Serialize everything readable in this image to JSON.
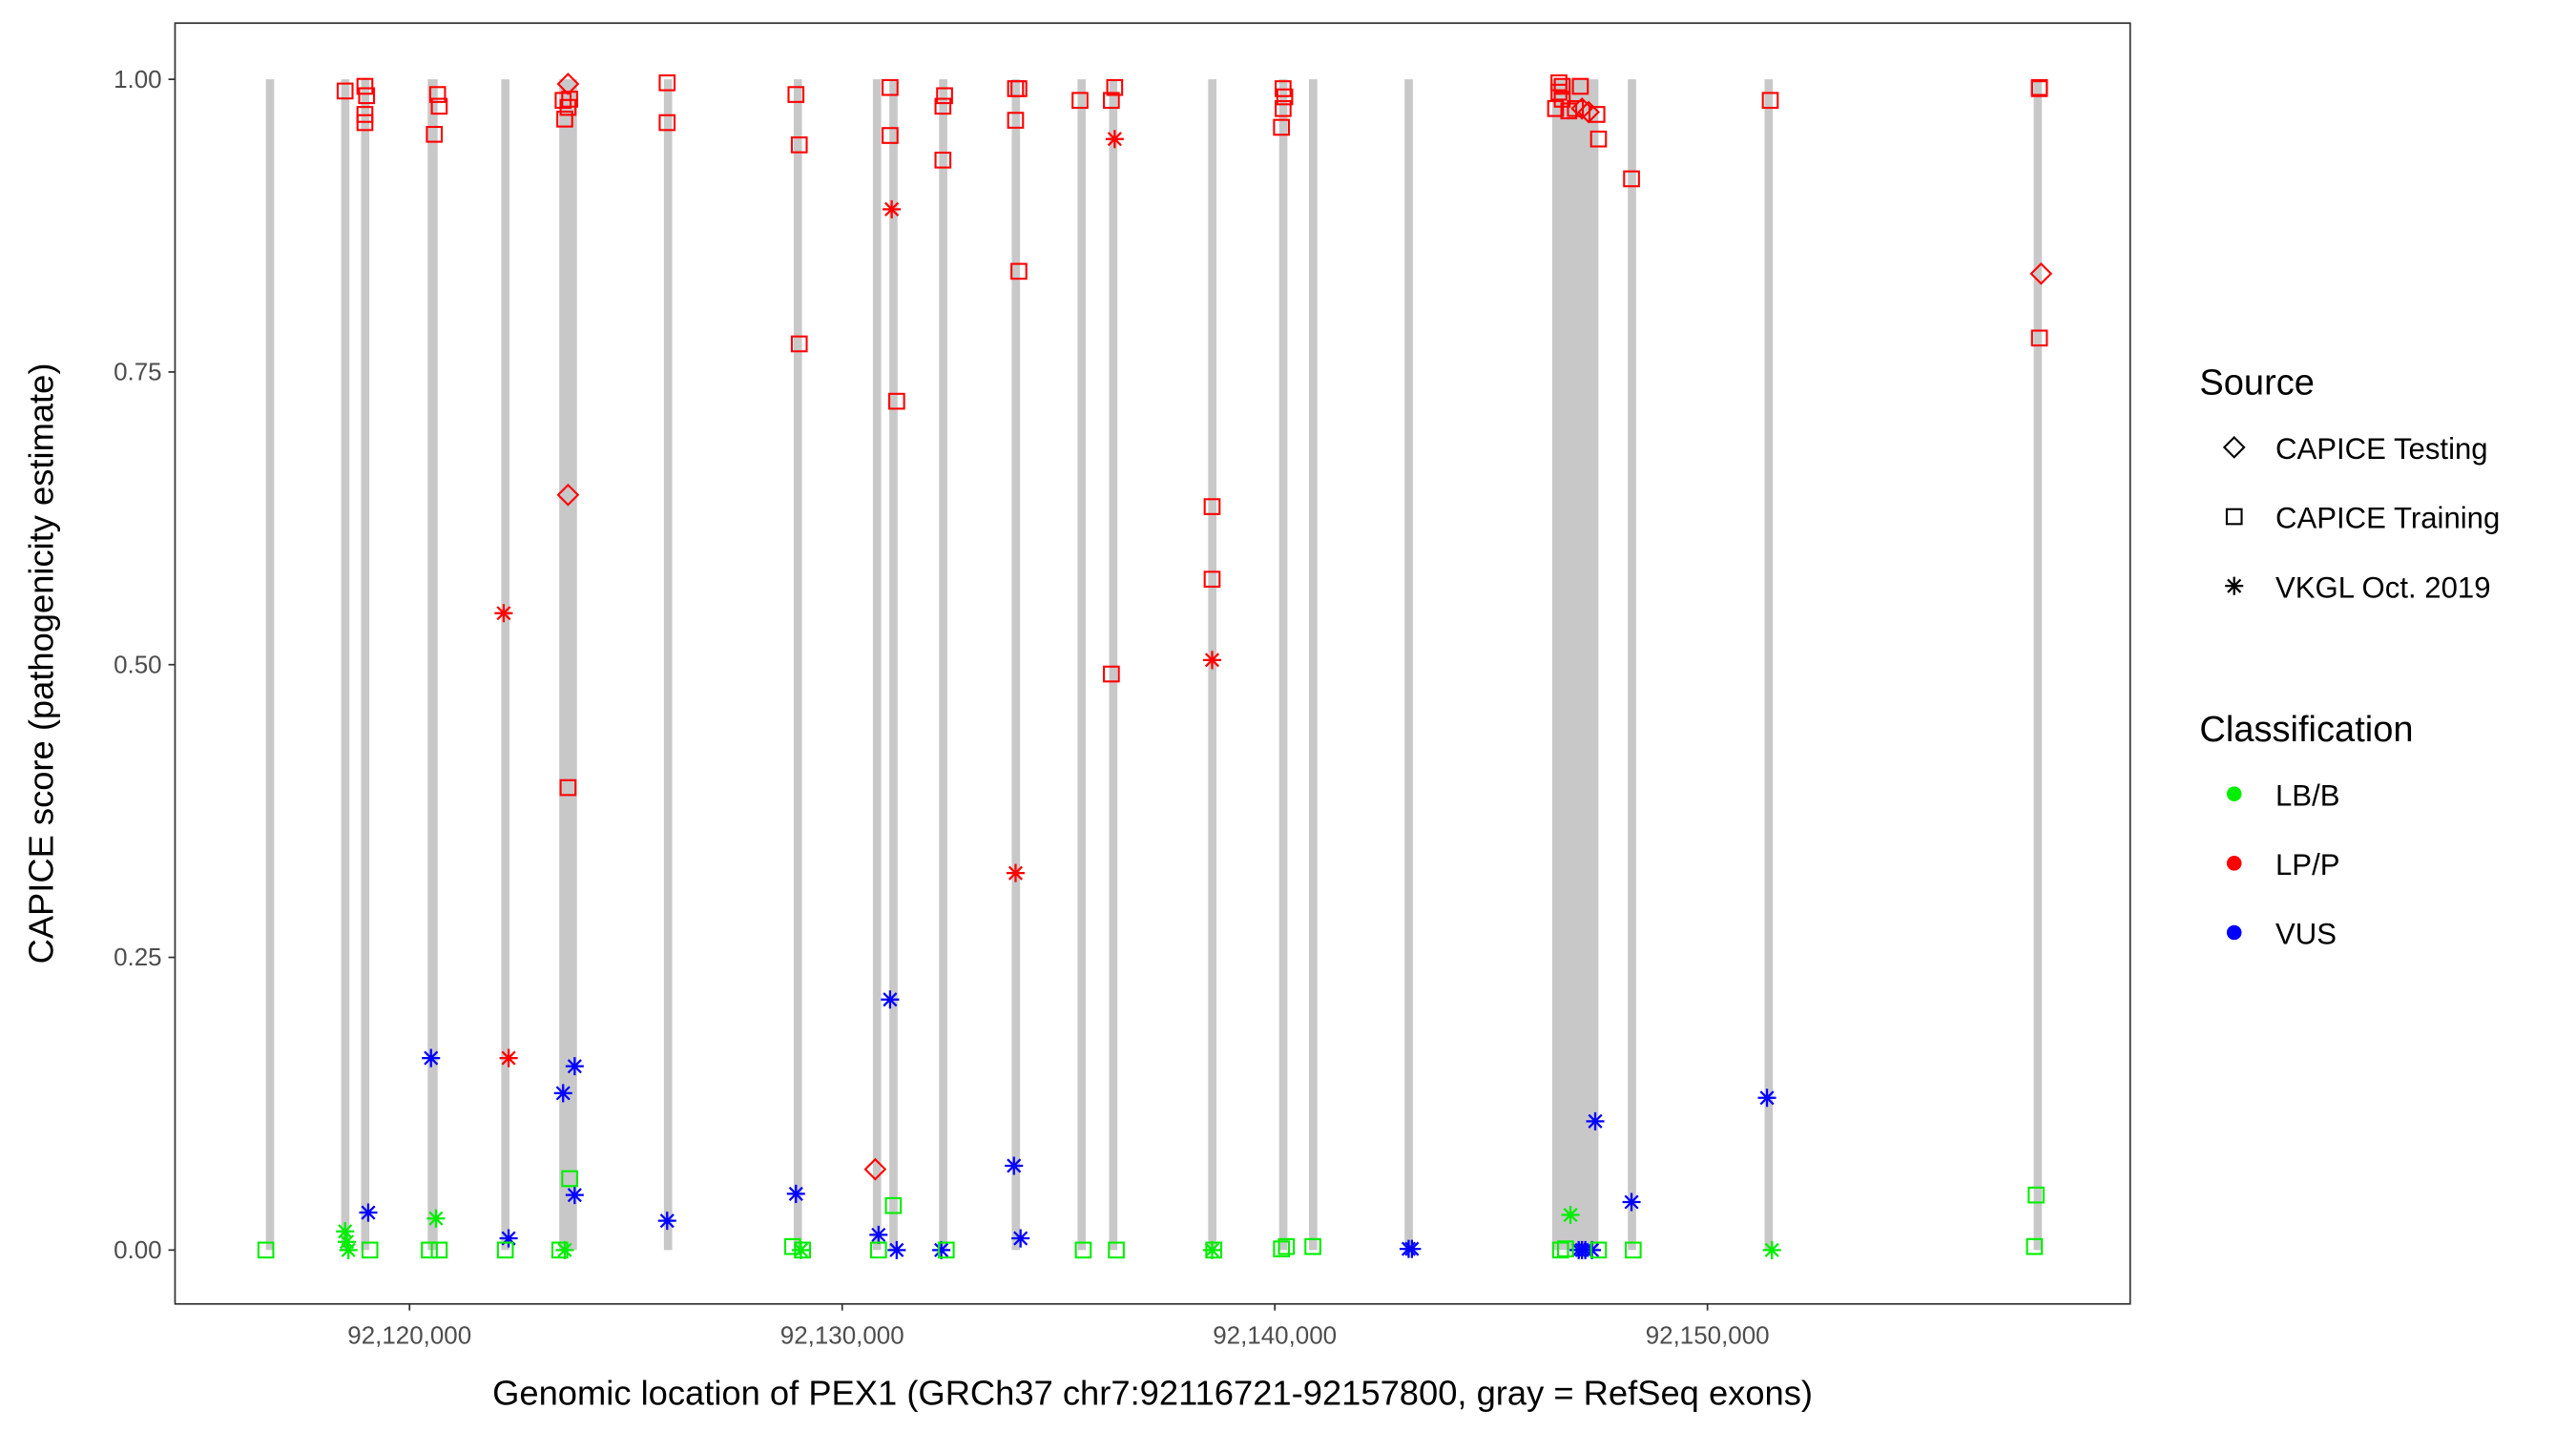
{
  "chart_data": {
    "type": "scatter",
    "xlabel": "Genomic location of PEX1 (GRCh37 chr7:92116721-92157800, gray = RefSeq exons)",
    "ylabel": "CAPICE score (pathogenicity estimate)",
    "xlim": [
      92114580,
      92159770
    ],
    "ylim": [
      -0.046,
      1.048
    ],
    "x_ticks": [
      92120000,
      92130000,
      92140000,
      92150000
    ],
    "x_tick_labels": [
      "92,120,000",
      "92,130,000",
      "92,140,000",
      "92,150,000"
    ],
    "y_ticks": [
      0,
      0.25,
      0.5,
      0.75,
      1.0
    ],
    "y_tick_labels": [
      "0.00",
      "0.25",
      "0.50",
      "0.75",
      "1.00"
    ],
    "grid": false,
    "exon_color": "#c8c8c8",
    "exons": [
      [
        92116680,
        92116860
      ],
      [
        92118420,
        92118600
      ],
      [
        92118880,
        92119060
      ],
      [
        92120420,
        92120650
      ],
      [
        92122120,
        92122300
      ],
      [
        92123460,
        92123870
      ],
      [
        92125880,
        92126030
      ],
      [
        92128880,
        92129060
      ],
      [
        92130710,
        92130890
      ],
      [
        92131090,
        92131270
      ],
      [
        92132240,
        92132420
      ],
      [
        92133920,
        92134100
      ],
      [
        92135440,
        92135620
      ],
      [
        92136170,
        92136350
      ],
      [
        92138460,
        92138640
      ],
      [
        92140100,
        92140280
      ],
      [
        92140790,
        92140970
      ],
      [
        92143000,
        92143180
      ],
      [
        92146410,
        92147480
      ],
      [
        92148160,
        92148330
      ],
      [
        92151320,
        92151500
      ],
      [
        92157540,
        92157730
      ]
    ],
    "legend": {
      "placement": "right",
      "source_title": "Source",
      "source_entries": [
        {
          "key": "testing",
          "label": "CAPICE Testing",
          "shape": "diamond"
        },
        {
          "key": "training",
          "label": "CAPICE Training",
          "shape": "square"
        },
        {
          "key": "vkgl",
          "label": "VKGL Oct. 2019",
          "shape": "asterisk"
        }
      ],
      "class_title": "Classification",
      "class_entries": [
        {
          "key": "lbb",
          "label": "LB/B",
          "color": "#00ee00"
        },
        {
          "key": "lpp",
          "label": "LP/P",
          "color": "#ff0000"
        },
        {
          "key": "vus",
          "label": "VUS",
          "color": "#0000ff"
        }
      ]
    },
    "series": [
      {
        "source": "training",
        "class": "lpp",
        "points": [
          [
            92118511,
            0.99
          ],
          [
            92118969,
            0.994
          ],
          [
            92119008,
            0.986
          ],
          [
            92118969,
            0.97
          ],
          [
            92118969,
            0.963
          ],
          [
            92120649,
            0.987
          ],
          [
            92120687,
            0.977
          ],
          [
            92120573,
            0.953
          ],
          [
            92123550,
            0.982
          ],
          [
            92123702,
            0.983
          ],
          [
            92123664,
            0.976
          ],
          [
            92123588,
            0.966
          ],
          [
            92123664,
            0.395
          ],
          [
            92125954,
            0.997
          ],
          [
            92125954,
            0.963
          ],
          [
            92128932,
            0.987
          ],
          [
            92129008,
            0.944
          ],
          [
            92129008,
            0.774
          ],
          [
            92131107,
            0.993
          ],
          [
            92131107,
            0.952
          ],
          [
            92131260,
            0.725
          ],
          [
            92132367,
            0.986
          ],
          [
            92132329,
            0.977
          ],
          [
            92132329,
            0.931
          ],
          [
            92134008,
            0.992
          ],
          [
            92134084,
            0.992
          ],
          [
            92134008,
            0.965
          ],
          [
            92134084,
            0.836
          ],
          [
            92135497,
            0.982
          ],
          [
            92136222,
            0.982
          ],
          [
            92136299,
            0.993
          ],
          [
            92136222,
            0.492
          ],
          [
            92138551,
            0.635
          ],
          [
            92138551,
            0.573
          ],
          [
            92140192,
            0.992
          ],
          [
            92140230,
            0.985
          ],
          [
            92140192,
            0.975
          ],
          [
            92140154,
            0.959
          ],
          [
            92148245,
            0.915
          ],
          [
            92151452,
            0.982
          ],
          [
            92157673,
            0.993
          ],
          [
            92157673,
            0.992
          ],
          [
            92157673,
            0.779
          ],
          [
            92146567,
            0.997
          ],
          [
            92146643,
            0.994
          ],
          [
            92146567,
            0.989
          ],
          [
            92146643,
            0.983
          ],
          [
            92146490,
            0.975
          ],
          [
            92146795,
            0.973
          ],
          [
            92147062,
            0.994
          ],
          [
            92146948,
            0.975
          ],
          [
            92147444,
            0.97
          ],
          [
            92147482,
            0.949
          ]
        ]
      },
      {
        "source": "testing",
        "class": "lpp",
        "points": [
          [
            92123664,
            0.996
          ],
          [
            92123664,
            0.645
          ],
          [
            92130764,
            0.069
          ],
          [
            92157711,
            0.834
          ],
          [
            92147100,
            0.975
          ],
          [
            92147253,
            0.972
          ]
        ]
      },
      {
        "source": "vkgl",
        "class": "lpp",
        "points": [
          [
            92122176,
            0.544
          ],
          [
            92122290,
            0.164
          ],
          [
            92131145,
            0.889
          ],
          [
            92134008,
            0.322
          ],
          [
            92138551,
            0.504
          ],
          [
            92136299,
            0.949
          ]
        ]
      },
      {
        "source": "vkgl",
        "class": "vus",
        "points": [
          [
            92120496,
            0.164
          ],
          [
            92119046,
            0.032
          ],
          [
            92122290,
            0.01
          ],
          [
            92123550,
            0.134
          ],
          [
            92123817,
            0.157
          ],
          [
            92123817,
            0.047
          ],
          [
            92125954,
            0.025
          ],
          [
            92128932,
            0.048
          ],
          [
            92131107,
            0.214
          ],
          [
            92130840,
            0.013
          ],
          [
            92131260,
            0.0
          ],
          [
            92132291,
            0.0
          ],
          [
            92133970,
            0.072
          ],
          [
            92134123,
            0.01
          ],
          [
            92143093,
            0.001
          ],
          [
            92143169,
            0.001
          ],
          [
            92147406,
            0.11
          ],
          [
            92148245,
            0.041
          ],
          [
            92151376,
            0.13
          ],
          [
            92147024,
            0.0
          ],
          [
            92147177,
            0.0
          ],
          [
            92147330,
            0.0
          ],
          [
            92147100,
            0.0
          ]
        ]
      },
      {
        "source": "training",
        "class": "lbb",
        "points": [
          [
            92116679,
            0.0
          ],
          [
            92119084,
            0.0
          ],
          [
            92120458,
            0.0
          ],
          [
            92120687,
            0.0
          ],
          [
            92122214,
            0.0
          ],
          [
            92123473,
            0.0
          ],
          [
            92123702,
            0.061
          ],
          [
            92128855,
            0.003
          ],
          [
            92129084,
            0.0
          ],
          [
            92130840,
            0.0
          ],
          [
            92131183,
            0.038
          ],
          [
            92132405,
            0.0
          ],
          [
            92135573,
            0.0
          ],
          [
            92136337,
            0.0
          ],
          [
            92138589,
            0.0
          ],
          [
            92140154,
            0.001
          ],
          [
            92140268,
            0.003
          ],
          [
            92140879,
            0.003
          ],
          [
            92146605,
            0.0
          ],
          [
            92146719,
            0.001
          ],
          [
            92147482,
            0.0
          ],
          [
            92148284,
            0.0
          ],
          [
            92157597,
            0.047
          ],
          [
            92157559,
            0.003
          ]
        ]
      },
      {
        "source": "vkgl",
        "class": "lbb",
        "points": [
          [
            92118511,
            0.016
          ],
          [
            92118550,
            0.007
          ],
          [
            92118588,
            0.0
          ],
          [
            92120611,
            0.027
          ],
          [
            92123588,
            0.0
          ],
          [
            92129046,
            0.0
          ],
          [
            92138551,
            0.0
          ],
          [
            92146833,
            0.03
          ],
          [
            92151490,
            0.0
          ]
        ]
      }
    ]
  }
}
